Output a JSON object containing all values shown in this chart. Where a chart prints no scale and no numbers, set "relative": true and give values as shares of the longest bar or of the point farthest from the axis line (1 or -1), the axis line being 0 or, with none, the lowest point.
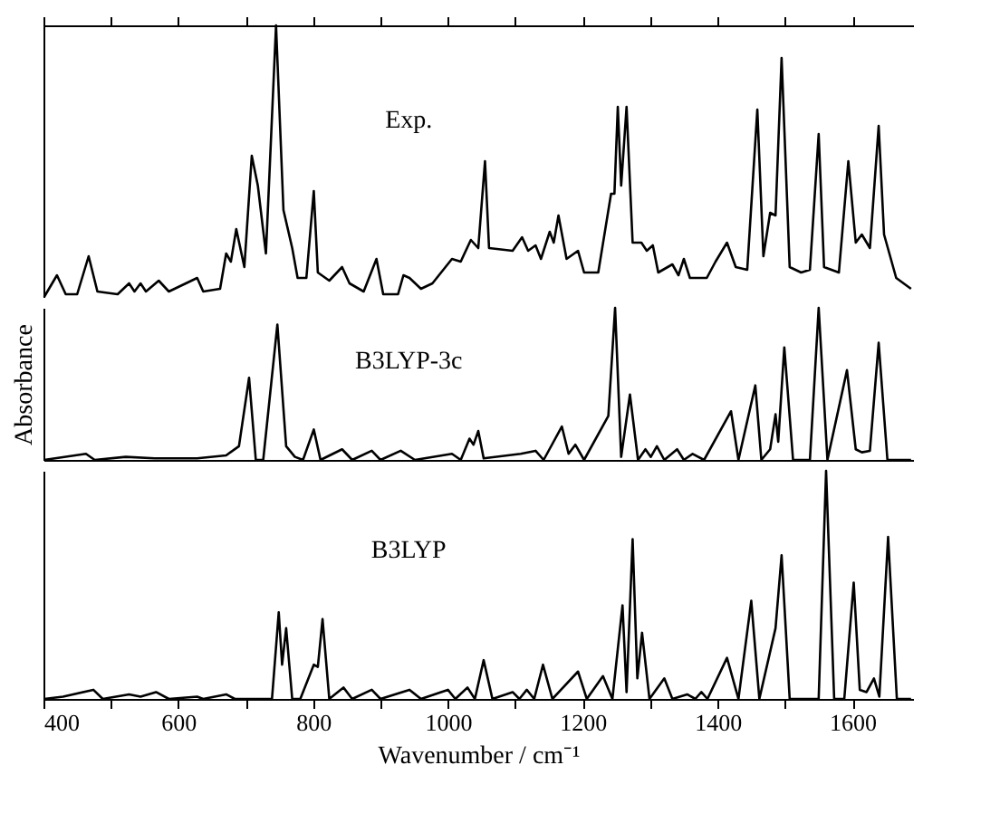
{
  "chart_data": [
    {
      "type": "line",
      "relative": true,
      "tick_labels": false,
      "xlim": [
        400,
        1690
      ],
      "xticks": [
        400,
        {
          "value": 500,
          "label": null
        },
        600,
        {
          "value": 700,
          "label": null
        },
        800,
        {
          "value": 900,
          "label": null
        },
        1000,
        {
          "value": 1100,
          "label": null
        },
        1200,
        {
          "value": 1300,
          "label": null
        },
        1400,
        {
          "value": 1500,
          "label": null
        },
        1600
      ],
      "series": [
        {
          "name": "Exp.",
          "color": "#000000",
          "x": [
            401,
            420,
            433,
            450,
            467,
            480,
            510,
            527,
            535,
            544,
            552,
            571,
            586,
            628,
            637,
            662,
            671,
            678,
            686,
            698,
            709,
            718,
            730,
            745,
            756,
            769,
            777,
            790,
            801,
            807,
            824,
            843,
            854,
            875,
            894,
            904,
            926,
            934,
            943,
            960,
            977,
            1006,
            1019,
            1034,
            1045,
            1055,
            1061,
            1096,
            1110,
            1119,
            1130,
            1138,
            1151,
            1157,
            1164,
            1176,
            1193,
            1202,
            1223,
            1242,
            1247,
            1252,
            1257,
            1265,
            1274,
            1287,
            1295,
            1304,
            1312,
            1333,
            1342,
            1350,
            1359,
            1384,
            1397,
            1414,
            1427,
            1444,
            1459,
            1468,
            1478,
            1486,
            1495,
            1507,
            1524,
            1537,
            1550,
            1558,
            1580,
            1594,
            1605,
            1614,
            1626,
            1639,
            1647,
            1665,
            1687
          ],
          "values": [
            0,
            0.08,
            0.01,
            0.01,
            0.15,
            0.02,
            0.01,
            0.05,
            0.02,
            0.05,
            0.02,
            0.06,
            0.02,
            0.07,
            0.02,
            0.03,
            0.16,
            0.13,
            0.25,
            0.11,
            0.52,
            0.41,
            0.16,
            1,
            0.32,
            0.18,
            0.07,
            0.07,
            0.39,
            0.09,
            0.06,
            0.11,
            0.05,
            0.02,
            0.14,
            0.01,
            0.01,
            0.08,
            0.07,
            0.03,
            0.05,
            0.14,
            0.13,
            0.21,
            0.18,
            0.5,
            0.18,
            0.17,
            0.22,
            0.17,
            0.19,
            0.14,
            0.24,
            0.2,
            0.3,
            0.14,
            0.17,
            0.09,
            0.09,
            0.38,
            0.38,
            0.7,
            0.41,
            0.7,
            0.2,
            0.2,
            0.17,
            0.19,
            0.09,
            0.12,
            0.08,
            0.14,
            0.07,
            0.07,
            0.13,
            0.2,
            0.11,
            0.1,
            0.69,
            0.15,
            0.31,
            0.3,
            0.88,
            0.11,
            0.09,
            0.1,
            0.6,
            0.11,
            0.09,
            0.5,
            0.2,
            0.23,
            0.18,
            0.63,
            0.23,
            0.07,
            0.03
          ]
        }
      ]
    },
    {
      "type": "line",
      "relative": true,
      "tick_labels": false,
      "ylabel": "Absorbance",
      "xlim": [
        400,
        1690
      ],
      "series": [
        {
          "name": "B3LYP-3c",
          "color": "#000000",
          "x": [
            401,
            463,
            476,
            522,
            565,
            628,
            671,
            690,
            705,
            715,
            726,
            747,
            760,
            773,
            785,
            801,
            811,
            843,
            858,
            887,
            900,
            930,
            951,
            1006,
            1019,
            1032,
            1038,
            1045,
            1053,
            1108,
            1130,
            1142,
            1169,
            1179,
            1189,
            1202,
            1238,
            1248,
            1257,
            1270,
            1282,
            1293,
            1301,
            1310,
            1321,
            1340,
            1350,
            1363,
            1380,
            1420,
            1431,
            1456,
            1465,
            1478,
            1486,
            1490,
            1499,
            1512,
            1537,
            1550,
            1563,
            1592,
            1605,
            1614,
            1626,
            1639,
            1652,
            1687
          ],
          "values": [
            0,
            0.04,
            0,
            0.02,
            0.01,
            0.01,
            0.03,
            0.09,
            0.54,
            0,
            0,
            0.89,
            0.09,
            0.02,
            0,
            0.2,
            0,
            0.07,
            0,
            0.06,
            0,
            0.06,
            0,
            0.04,
            0,
            0.14,
            0.1,
            0.19,
            0.01,
            0.04,
            0.06,
            0,
            0.22,
            0.04,
            0.1,
            0,
            0.29,
            1,
            0.02,
            0.43,
            0,
            0.07,
            0.02,
            0.09,
            0,
            0.07,
            0,
            0.04,
            0,
            0.32,
            0,
            0.49,
            0,
            0.07,
            0.3,
            0.12,
            0.74,
            0,
            0,
            1,
            0,
            0.59,
            0.07,
            0.05,
            0.06,
            0.77,
            0,
            0
          ]
        }
      ]
    },
    {
      "type": "line",
      "relative": true,
      "tick_labels": "x",
      "xlabel": "Wavenumber / cm⁻¹",
      "xlim": [
        400,
        1690
      ],
      "xticks": [
        400,
        {
          "value": 500,
          "label": null
        },
        600,
        {
          "value": 700,
          "label": null
        },
        800,
        {
          "value": 900,
          "label": null
        },
        1000,
        {
          "value": 1100,
          "label": null
        },
        1200,
        {
          "value": 1300,
          "label": null
        },
        1400,
        {
          "value": 1500,
          "label": null
        },
        1600
      ],
      "series": [
        {
          "name": "B3LYP",
          "color": "#000000",
          "x": [
            401,
            429,
            474,
            488,
            527,
            544,
            567,
            586,
            628,
            637,
            671,
            684,
            739,
            749,
            754,
            760,
            769,
            781,
            801,
            807,
            814,
            824,
            845,
            858,
            887,
            900,
            943,
            960,
            1000,
            1011,
            1029,
            1040,
            1053,
            1066,
            1096,
            1106,
            1117,
            1128,
            1141,
            1155,
            1193,
            1206,
            1230,
            1244,
            1259,
            1265,
            1274,
            1281,
            1288,
            1299,
            1321,
            1333,
            1355,
            1367,
            1376,
            1385,
            1414,
            1431,
            1450,
            1462,
            1486,
            1495,
            1507,
            1550,
            1561,
            1573,
            1588,
            1602,
            1611,
            1621,
            1632,
            1640,
            1653,
            1666,
            1687
          ],
          "values": [
            0,
            0.01,
            0.04,
            0,
            0.02,
            0.01,
            0.03,
            0,
            0.01,
            0,
            0.02,
            0,
            0,
            0.38,
            0.15,
            0.31,
            0,
            0,
            0.15,
            0.14,
            0.35,
            0,
            0.05,
            0,
            0.04,
            0,
            0.04,
            0,
            0.04,
            0,
            0.05,
            0,
            0.17,
            0,
            0.03,
            0,
            0.04,
            0,
            0.15,
            0,
            0.12,
            0,
            0.1,
            0,
            0.41,
            0.03,
            0.7,
            0.09,
            0.29,
            0,
            0.09,
            0,
            0.02,
            0,
            0.03,
            0,
            0.18,
            0,
            0.43,
            0,
            0.31,
            0.63,
            0,
            0,
            1,
            0,
            0,
            0.51,
            0.04,
            0.03,
            0.09,
            0.01,
            0.71,
            0,
            0
          ]
        }
      ]
    }
  ]
}
